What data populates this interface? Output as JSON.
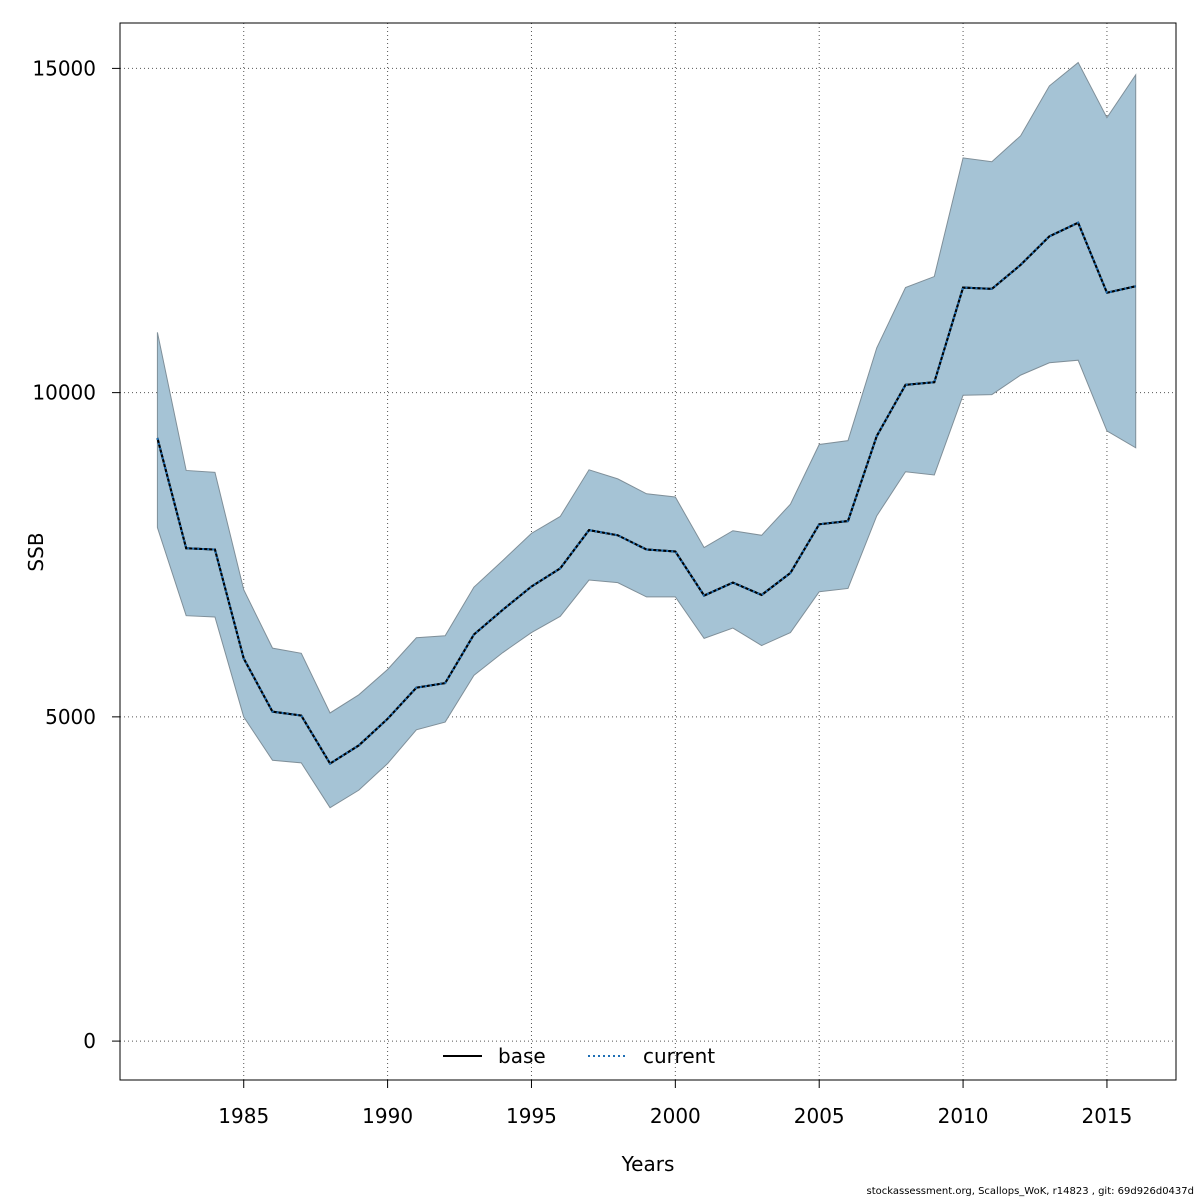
{
  "chart_data": {
    "type": "area",
    "xlabel": "Years",
    "ylabel": "SSB",
    "x_ticks": [
      1985,
      1990,
      1995,
      2000,
      2005,
      2010,
      2015
    ],
    "y_ticks": [
      0,
      5000,
      10000,
      15000
    ],
    "xlim": [
      1980.7,
      2017.4
    ],
    "ylim": [
      -600,
      15700
    ],
    "grid": true,
    "legend_position": "bottom-center",
    "band_color": "#a5c3d5",
    "band_edge_color": "#7f8f99",
    "line_color": "#000000",
    "current_dash_color": "#1e6fb5",
    "x": [
      1982,
      1983,
      1984,
      1985,
      1986,
      1987,
      1988,
      1989,
      1990,
      1991,
      1992,
      1993,
      1994,
      1995,
      1996,
      1997,
      1998,
      1999,
      2000,
      2001,
      2002,
      2003,
      2004,
      2005,
      2006,
      2007,
      2008,
      2009,
      2010,
      2011,
      2012,
      2013,
      2014,
      2015,
      2016
    ],
    "series": [
      {
        "name": "base",
        "style": "solid",
        "values": [
          9300,
          7600,
          7580,
          5900,
          5080,
          5020,
          4280,
          4560,
          4970,
          5450,
          5520,
          6270,
          6650,
          7010,
          7290,
          7880,
          7800,
          7580,
          7550,
          6870,
          7070,
          6880,
          7220,
          7970,
          8020,
          9330,
          10120,
          10160,
          11620,
          11600,
          11970,
          12410,
          12620,
          11540,
          11640
        ]
      },
      {
        "name": "current",
        "style": "dotted",
        "values": [
          9300,
          7600,
          7580,
          5900,
          5080,
          5020,
          4280,
          4560,
          4970,
          5450,
          5520,
          6270,
          6650,
          7010,
          7290,
          7880,
          7800,
          7580,
          7550,
          6870,
          7070,
          6880,
          7220,
          7970,
          8020,
          9330,
          10120,
          10160,
          11620,
          11600,
          11970,
          12410,
          12620,
          11540,
          11640
        ]
      }
    ],
    "band": {
      "lower": [
        7920,
        6560,
        6540,
        5000,
        4330,
        4290,
        3600,
        3870,
        4280,
        4800,
        4920,
        5640,
        5990,
        6300,
        6550,
        7110,
        7070,
        6850,
        6850,
        6210,
        6370,
        6100,
        6300,
        6930,
        6980,
        8100,
        8780,
        8730,
        9960,
        9970,
        10270,
        10460,
        10500,
        9410,
        9150
      ],
      "upper": [
        10930,
        8800,
        8770,
        6960,
        6060,
        5980,
        5060,
        5340,
        5730,
        6220,
        6250,
        7000,
        7410,
        7830,
        8090,
        8810,
        8670,
        8440,
        8390,
        7610,
        7870,
        7800,
        8280,
        9200,
        9260,
        10690,
        11620,
        11790,
        13620,
        13560,
        13960,
        14730,
        15090,
        14240,
        14900
      ]
    }
  },
  "footer": {
    "text": "stockassessment.org, Scallops_WoK, r14823 , git: 69d926d0437d"
  }
}
